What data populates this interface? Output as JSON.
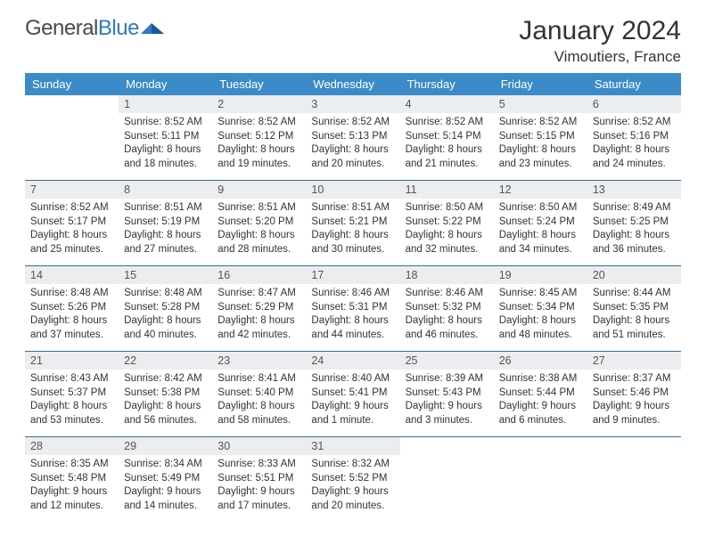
{
  "logo": {
    "part1": "General",
    "part2": "Blue"
  },
  "header": {
    "title": "January 2024",
    "location": "Vimoutiers, France"
  },
  "colors": {
    "header_bg": "#3b8bc8",
    "header_text": "#ffffff",
    "row_border": "#2d6fa3",
    "daynum_bg": "#ecedef",
    "daynum_text": "#555555",
    "body_text": "#333333",
    "logo_blue": "#2b7cc0",
    "logo_dark": "#1a5a8f"
  },
  "calendar": {
    "daynames": [
      "Sunday",
      "Monday",
      "Tuesday",
      "Wednesday",
      "Thursday",
      "Friday",
      "Saturday"
    ],
    "weeks": [
      [
        null,
        {
          "n": "1",
          "sunrise": "8:52 AM",
          "sunset": "5:11 PM",
          "daylight": "8 hours and 18 minutes."
        },
        {
          "n": "2",
          "sunrise": "8:52 AM",
          "sunset": "5:12 PM",
          "daylight": "8 hours and 19 minutes."
        },
        {
          "n": "3",
          "sunrise": "8:52 AM",
          "sunset": "5:13 PM",
          "daylight": "8 hours and 20 minutes."
        },
        {
          "n": "4",
          "sunrise": "8:52 AM",
          "sunset": "5:14 PM",
          "daylight": "8 hours and 21 minutes."
        },
        {
          "n": "5",
          "sunrise": "8:52 AM",
          "sunset": "5:15 PM",
          "daylight": "8 hours and 23 minutes."
        },
        {
          "n": "6",
          "sunrise": "8:52 AM",
          "sunset": "5:16 PM",
          "daylight": "8 hours and 24 minutes."
        }
      ],
      [
        {
          "n": "7",
          "sunrise": "8:52 AM",
          "sunset": "5:17 PM",
          "daylight": "8 hours and 25 minutes."
        },
        {
          "n": "8",
          "sunrise": "8:51 AM",
          "sunset": "5:19 PM",
          "daylight": "8 hours and 27 minutes."
        },
        {
          "n": "9",
          "sunrise": "8:51 AM",
          "sunset": "5:20 PM",
          "daylight": "8 hours and 28 minutes."
        },
        {
          "n": "10",
          "sunrise": "8:51 AM",
          "sunset": "5:21 PM",
          "daylight": "8 hours and 30 minutes."
        },
        {
          "n": "11",
          "sunrise": "8:50 AM",
          "sunset": "5:22 PM",
          "daylight": "8 hours and 32 minutes."
        },
        {
          "n": "12",
          "sunrise": "8:50 AM",
          "sunset": "5:24 PM",
          "daylight": "8 hours and 34 minutes."
        },
        {
          "n": "13",
          "sunrise": "8:49 AM",
          "sunset": "5:25 PM",
          "daylight": "8 hours and 36 minutes."
        }
      ],
      [
        {
          "n": "14",
          "sunrise": "8:48 AM",
          "sunset": "5:26 PM",
          "daylight": "8 hours and 37 minutes."
        },
        {
          "n": "15",
          "sunrise": "8:48 AM",
          "sunset": "5:28 PM",
          "daylight": "8 hours and 40 minutes."
        },
        {
          "n": "16",
          "sunrise": "8:47 AM",
          "sunset": "5:29 PM",
          "daylight": "8 hours and 42 minutes."
        },
        {
          "n": "17",
          "sunrise": "8:46 AM",
          "sunset": "5:31 PM",
          "daylight": "8 hours and 44 minutes."
        },
        {
          "n": "18",
          "sunrise": "8:46 AM",
          "sunset": "5:32 PM",
          "daylight": "8 hours and 46 minutes."
        },
        {
          "n": "19",
          "sunrise": "8:45 AM",
          "sunset": "5:34 PM",
          "daylight": "8 hours and 48 minutes."
        },
        {
          "n": "20",
          "sunrise": "8:44 AM",
          "sunset": "5:35 PM",
          "daylight": "8 hours and 51 minutes."
        }
      ],
      [
        {
          "n": "21",
          "sunrise": "8:43 AM",
          "sunset": "5:37 PM",
          "daylight": "8 hours and 53 minutes."
        },
        {
          "n": "22",
          "sunrise": "8:42 AM",
          "sunset": "5:38 PM",
          "daylight": "8 hours and 56 minutes."
        },
        {
          "n": "23",
          "sunrise": "8:41 AM",
          "sunset": "5:40 PM",
          "daylight": "8 hours and 58 minutes."
        },
        {
          "n": "24",
          "sunrise": "8:40 AM",
          "sunset": "5:41 PM",
          "daylight": "9 hours and 1 minute."
        },
        {
          "n": "25",
          "sunrise": "8:39 AM",
          "sunset": "5:43 PM",
          "daylight": "9 hours and 3 minutes."
        },
        {
          "n": "26",
          "sunrise": "8:38 AM",
          "sunset": "5:44 PM",
          "daylight": "9 hours and 6 minutes."
        },
        {
          "n": "27",
          "sunrise": "8:37 AM",
          "sunset": "5:46 PM",
          "daylight": "9 hours and 9 minutes."
        }
      ],
      [
        {
          "n": "28",
          "sunrise": "8:35 AM",
          "sunset": "5:48 PM",
          "daylight": "9 hours and 12 minutes."
        },
        {
          "n": "29",
          "sunrise": "8:34 AM",
          "sunset": "5:49 PM",
          "daylight": "9 hours and 14 minutes."
        },
        {
          "n": "30",
          "sunrise": "8:33 AM",
          "sunset": "5:51 PM",
          "daylight": "9 hours and 17 minutes."
        },
        {
          "n": "31",
          "sunrise": "8:32 AM",
          "sunset": "5:52 PM",
          "daylight": "9 hours and 20 minutes."
        },
        null,
        null,
        null
      ]
    ],
    "labels": {
      "sunrise": "Sunrise:",
      "sunset": "Sunset:",
      "daylight": "Daylight:"
    }
  }
}
